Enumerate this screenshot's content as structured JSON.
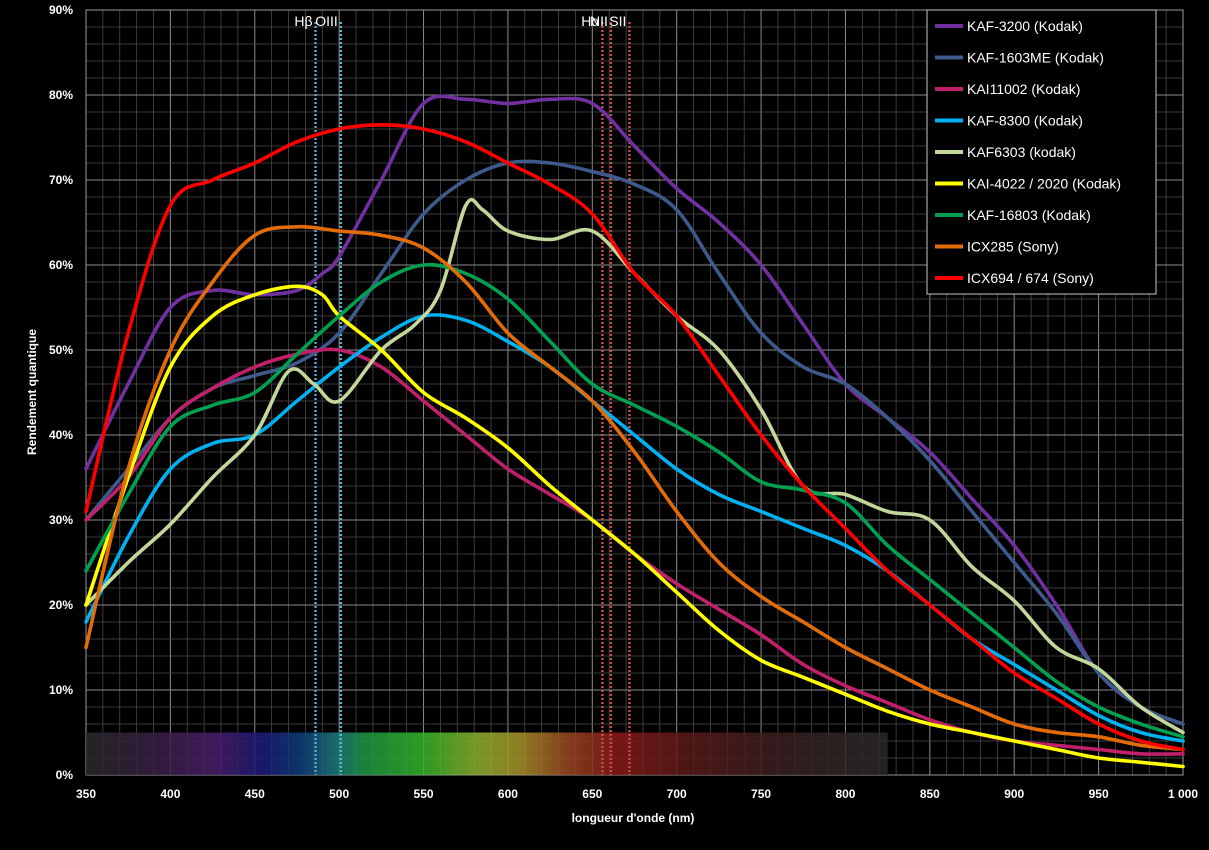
{
  "chart_data": {
    "type": "line",
    "title": "",
    "xlabel": "longueur d'onde (nm)",
    "ylabel": "Rendement quantique",
    "xlim": [
      350,
      1000
    ],
    "ylim": [
      0,
      90
    ],
    "x_ticks": [
      350,
      400,
      450,
      500,
      550,
      600,
      650,
      700,
      750,
      800,
      850,
      900,
      950,
      1000
    ],
    "x_tick_labels": [
      "350",
      "400",
      "450",
      "500",
      "550",
      "600",
      "650",
      "700",
      "750",
      "800",
      "850",
      "900",
      "950",
      "1 000"
    ],
    "y_ticks": [
      0,
      10,
      20,
      30,
      40,
      50,
      60,
      70,
      80,
      90
    ],
    "y_tick_labels": [
      "0%",
      "10%",
      "20%",
      "30%",
      "40%",
      "50%",
      "60%",
      "70%",
      "80%",
      "90%"
    ],
    "grid": true,
    "legend_position": "top-right",
    "spectrum_band": {
      "x_start": 350,
      "x_end": 825,
      "y_top": 5
    },
    "emission_lines": [
      {
        "label": "Hβ",
        "x": 486,
        "color": "#5aa6d8"
      },
      {
        "label": "OIII",
        "x": 501,
        "color": "#5ab8d0"
      },
      {
        "label": "Hα",
        "x": 656,
        "color": "#c8504a"
      },
      {
        "label": "NII",
        "x": 661,
        "color": "#c8504a"
      },
      {
        "label": "SII",
        "x": 672,
        "color": "#c8504a"
      }
    ],
    "series": [
      {
        "name": "KAF-3200 (Kodak)",
        "color": "#7030a0",
        "points": [
          [
            350,
            36
          ],
          [
            375,
            46
          ],
          [
            400,
            55
          ],
          [
            425,
            57
          ],
          [
            450,
            56.5
          ],
          [
            475,
            57
          ],
          [
            490,
            59
          ],
          [
            500,
            61
          ],
          [
            525,
            70
          ],
          [
            550,
            79
          ],
          [
            575,
            79.5
          ],
          [
            600,
            79
          ],
          [
            625,
            79.5
          ],
          [
            650,
            79
          ],
          [
            675,
            74
          ],
          [
            700,
            69
          ],
          [
            725,
            65
          ],
          [
            750,
            60
          ],
          [
            775,
            53
          ],
          [
            800,
            46
          ],
          [
            825,
            42
          ],
          [
            850,
            38
          ],
          [
            875,
            32.5
          ],
          [
            900,
            27
          ],
          [
            925,
            20
          ],
          [
            950,
            12
          ],
          [
            975,
            8
          ],
          [
            1000,
            6
          ]
        ]
      },
      {
        "name": "KAF-1603ME (Kodak)",
        "color": "#3d5a8a",
        "points": [
          [
            350,
            30
          ],
          [
            375,
            36
          ],
          [
            400,
            42
          ],
          [
            425,
            45.5
          ],
          [
            450,
            47
          ],
          [
            475,
            48.5
          ],
          [
            500,
            52
          ],
          [
            525,
            59
          ],
          [
            550,
            66
          ],
          [
            575,
            70
          ],
          [
            600,
            72
          ],
          [
            625,
            72
          ],
          [
            650,
            71
          ],
          [
            675,
            69.5
          ],
          [
            700,
            66.5
          ],
          [
            725,
            59
          ],
          [
            750,
            52
          ],
          [
            775,
            48
          ],
          [
            800,
            46
          ],
          [
            825,
            42
          ],
          [
            850,
            37
          ],
          [
            875,
            31
          ],
          [
            900,
            25
          ],
          [
            925,
            19
          ],
          [
            950,
            12
          ],
          [
            975,
            8
          ],
          [
            1000,
            6
          ]
        ]
      },
      {
        "name": "KAI11002 (Kodak)",
        "color": "#c0206a",
        "points": [
          [
            350,
            30
          ],
          [
            375,
            35
          ],
          [
            400,
            42
          ],
          [
            425,
            45.5
          ],
          [
            450,
            48
          ],
          [
            475,
            49.5
          ],
          [
            500,
            50
          ],
          [
            525,
            48
          ],
          [
            550,
            44
          ],
          [
            575,
            40
          ],
          [
            600,
            36
          ],
          [
            625,
            33
          ],
          [
            650,
            30
          ],
          [
            675,
            26
          ],
          [
            700,
            22.5
          ],
          [
            725,
            19.5
          ],
          [
            750,
            16.5
          ],
          [
            775,
            13
          ],
          [
            800,
            10.5
          ],
          [
            825,
            8.5
          ],
          [
            850,
            6.5
          ],
          [
            875,
            5
          ],
          [
            900,
            4
          ],
          [
            925,
            3.5
          ],
          [
            950,
            3
          ],
          [
            975,
            2.5
          ],
          [
            1000,
            2.5
          ]
        ]
      },
      {
        "name": "KAF-8300 (Kodak)",
        "color": "#00b0f0",
        "points": [
          [
            350,
            18
          ],
          [
            375,
            28
          ],
          [
            400,
            36
          ],
          [
            425,
            39
          ],
          [
            450,
            40
          ],
          [
            475,
            44
          ],
          [
            500,
            48
          ],
          [
            525,
            51.5
          ],
          [
            550,
            54
          ],
          [
            575,
            53.5
          ],
          [
            600,
            51
          ],
          [
            625,
            48
          ],
          [
            650,
            44
          ],
          [
            675,
            40
          ],
          [
            700,
            36
          ],
          [
            725,
            33
          ],
          [
            750,
            31
          ],
          [
            775,
            29
          ],
          [
            800,
            27
          ],
          [
            825,
            24
          ],
          [
            850,
            20
          ],
          [
            875,
            16
          ],
          [
            900,
            13
          ],
          [
            925,
            10
          ],
          [
            950,
            7
          ],
          [
            975,
            5
          ],
          [
            1000,
            4
          ]
        ]
      },
      {
        "name": "KAF6303 (kodak)",
        "color": "#c4d79b",
        "points": [
          [
            350,
            20
          ],
          [
            375,
            25
          ],
          [
            400,
            29.5
          ],
          [
            425,
            35
          ],
          [
            450,
            40
          ],
          [
            470,
            47.5
          ],
          [
            485,
            46
          ],
          [
            500,
            44
          ],
          [
            525,
            50
          ],
          [
            545,
            53
          ],
          [
            560,
            57
          ],
          [
            575,
            67
          ],
          [
            585,
            66.5
          ],
          [
            600,
            64
          ],
          [
            625,
            63
          ],
          [
            650,
            64
          ],
          [
            675,
            59
          ],
          [
            700,
            54
          ],
          [
            725,
            50
          ],
          [
            750,
            43
          ],
          [
            775,
            34
          ],
          [
            800,
            33
          ],
          [
            825,
            31
          ],
          [
            850,
            30
          ],
          [
            875,
            24.5
          ],
          [
            900,
            20.5
          ],
          [
            925,
            15
          ],
          [
            950,
            12.5
          ],
          [
            975,
            8
          ],
          [
            1000,
            5
          ]
        ]
      },
      {
        "name": "KAI-4022 / 2020 (Kodak)",
        "color": "#ffff00",
        "points": [
          [
            350,
            20
          ],
          [
            375,
            35
          ],
          [
            400,
            48
          ],
          [
            425,
            54
          ],
          [
            450,
            56.5
          ],
          [
            475,
            57.5
          ],
          [
            490,
            56.5
          ],
          [
            500,
            54
          ],
          [
            525,
            50
          ],
          [
            550,
            45
          ],
          [
            575,
            42
          ],
          [
            600,
            38.5
          ],
          [
            625,
            34
          ],
          [
            650,
            30
          ],
          [
            675,
            26
          ],
          [
            700,
            21.5
          ],
          [
            725,
            17
          ],
          [
            750,
            13.5
          ],
          [
            775,
            11.5
          ],
          [
            800,
            9.5
          ],
          [
            825,
            7.5
          ],
          [
            850,
            6
          ],
          [
            875,
            5
          ],
          [
            900,
            4
          ],
          [
            925,
            3
          ],
          [
            950,
            2
          ],
          [
            975,
            1.5
          ],
          [
            1000,
            1
          ]
        ]
      },
      {
        "name": "KAF-16803 (Kodak)",
        "color": "#00a050",
        "points": [
          [
            350,
            24
          ],
          [
            375,
            33
          ],
          [
            400,
            41
          ],
          [
            425,
            43.5
          ],
          [
            450,
            45
          ],
          [
            475,
            49.5
          ],
          [
            500,
            54
          ],
          [
            525,
            58
          ],
          [
            550,
            60
          ],
          [
            575,
            59
          ],
          [
            600,
            56
          ],
          [
            625,
            51
          ],
          [
            650,
            46
          ],
          [
            675,
            43.5
          ],
          [
            700,
            41
          ],
          [
            725,
            38
          ],
          [
            750,
            34.5
          ],
          [
            775,
            33.5
          ],
          [
            800,
            32
          ],
          [
            825,
            27
          ],
          [
            850,
            23
          ],
          [
            875,
            19
          ],
          [
            900,
            15
          ],
          [
            925,
            11
          ],
          [
            950,
            8
          ],
          [
            975,
            6
          ],
          [
            1000,
            4.5
          ]
        ]
      },
      {
        "name": "ICX285 (Sony)",
        "color": "#e36c09",
        "points": [
          [
            350,
            15
          ],
          [
            375,
            36
          ],
          [
            400,
            50
          ],
          [
            425,
            58
          ],
          [
            450,
            63.5
          ],
          [
            475,
            64.5
          ],
          [
            500,
            64
          ],
          [
            525,
            63.5
          ],
          [
            550,
            62
          ],
          [
            575,
            58
          ],
          [
            600,
            52
          ],
          [
            625,
            48
          ],
          [
            650,
            44
          ],
          [
            675,
            38
          ],
          [
            700,
            31
          ],
          [
            725,
            25
          ],
          [
            750,
            21
          ],
          [
            775,
            18
          ],
          [
            800,
            15
          ],
          [
            825,
            12.5
          ],
          [
            850,
            10
          ],
          [
            875,
            8
          ],
          [
            900,
            6
          ],
          [
            925,
            5
          ],
          [
            950,
            4.5
          ],
          [
            975,
            3.5
          ],
          [
            1000,
            3
          ]
        ]
      },
      {
        "name": "ICX694 / 674 (Sony)",
        "color": "#ff0000",
        "points": [
          [
            350,
            31
          ],
          [
            375,
            52
          ],
          [
            400,
            67
          ],
          [
            425,
            70
          ],
          [
            450,
            72
          ],
          [
            475,
            74.5
          ],
          [
            500,
            76
          ],
          [
            525,
            76.5
          ],
          [
            550,
            76
          ],
          [
            575,
            74.5
          ],
          [
            600,
            72
          ],
          [
            625,
            69.5
          ],
          [
            650,
            66
          ],
          [
            675,
            59
          ],
          [
            700,
            54
          ],
          [
            725,
            47
          ],
          [
            750,
            40
          ],
          [
            775,
            34
          ],
          [
            800,
            29
          ],
          [
            825,
            24
          ],
          [
            850,
            20
          ],
          [
            875,
            16
          ],
          [
            900,
            12
          ],
          [
            925,
            9
          ],
          [
            950,
            6
          ],
          [
            975,
            4
          ],
          [
            1000,
            3
          ]
        ]
      }
    ]
  }
}
